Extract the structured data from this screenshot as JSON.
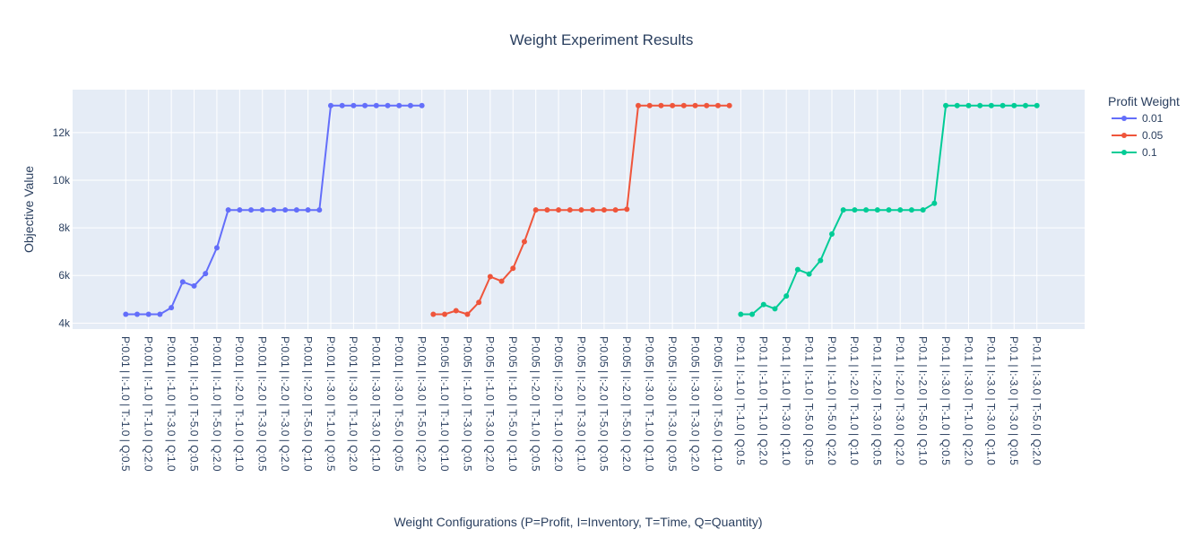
{
  "chart_data": {
    "type": "line",
    "title": "Weight Experiment Results",
    "xlabel": "Weight Configurations (P=Profit, I=Inventory, T=Time, Q=Quantity)",
    "ylabel": "Objective Value",
    "legend_title": "Profit Weight",
    "legend_position": "top-right",
    "grid": true,
    "ylim": [
      3750,
      13800
    ],
    "yticks": [
      4000,
      6000,
      8000,
      10000,
      12000
    ],
    "ytick_labels": [
      "4k",
      "6k",
      "8k",
      "10k",
      "12k"
    ],
    "plot_bg": "#e5ecf6",
    "categories": [
      "P:0.01 | I:-1.0 | T:-1.0 | Q:0.5",
      "P:0.01 | I:-1.0 | T:-1.0 | Q:2.0",
      "P:0.01 | I:-1.0 | T:-3.0 | Q:1.0",
      "P:0.01 | I:-1.0 | T:-5.0 | Q:0.5",
      "P:0.01 | I:-1.0 | T:-5.0 | Q:2.0",
      "P:0.01 | I:-2.0 | T:-1.0 | Q:1.0",
      "P:0.01 | I:-2.0 | T:-3.0 | Q:0.5",
      "P:0.01 | I:-2.0 | T:-3.0 | Q:2.0",
      "P:0.01 | I:-2.0 | T:-5.0 | Q:1.0",
      "P:0.01 | I:-3.0 | T:-1.0 | Q:0.5",
      "P:0.01 | I:-3.0 | T:-1.0 | Q:2.0",
      "P:0.01 | I:-3.0 | T:-3.0 | Q:1.0",
      "P:0.01 | I:-3.0 | T:-5.0 | Q:0.5",
      "P:0.01 | I:-3.0 | T:-5.0 | Q:2.0",
      "P:0.05 | I:-1.0 | T:-1.0 | Q:1.0",
      "P:0.05 | I:-1.0 | T:-3.0 | Q:0.5",
      "P:0.05 | I:-1.0 | T:-3.0 | Q:2.0",
      "P:0.05 | I:-1.0 | T:-5.0 | Q:1.0",
      "P:0.05 | I:-2.0 | T:-1.0 | Q:0.5",
      "P:0.05 | I:-2.0 | T:-1.0 | Q:2.0",
      "P:0.05 | I:-2.0 | T:-3.0 | Q:1.0",
      "P:0.05 | I:-2.0 | T:-5.0 | Q:0.5",
      "P:0.05 | I:-2.0 | T:-5.0 | Q:2.0",
      "P:0.05 | I:-3.0 | T:-1.0 | Q:1.0",
      "P:0.05 | I:-3.0 | T:-3.0 | Q:0.5",
      "P:0.05 | I:-3.0 | T:-3.0 | Q:2.0",
      "P:0.05 | I:-3.0 | T:-5.0 | Q:1.0",
      "P:0.1 | I:-1.0 | T:-1.0 | Q:0.5",
      "P:0.1 | I:-1.0 | T:-1.0 | Q:2.0",
      "P:0.1 | I:-1.0 | T:-3.0 | Q:1.0",
      "P:0.1 | I:-1.0 | T:-5.0 | Q:0.5",
      "P:0.1 | I:-1.0 | T:-5.0 | Q:2.0",
      "P:0.1 | I:-2.0 | T:-1.0 | Q:1.0",
      "P:0.1 | I:-2.0 | T:-3.0 | Q:0.5",
      "P:0.1 | I:-2.0 | T:-3.0 | Q:2.0",
      "P:0.1 | I:-2.0 | T:-5.0 | Q:1.0",
      "P:0.1 | I:-3.0 | T:-1.0 | Q:0.5",
      "P:0.1 | I:-3.0 | T:-1.0 | Q:2.0",
      "P:0.1 | I:-3.0 | T:-3.0 | Q:1.0",
      "P:0.1 | I:-3.0 | T:-3.0 | Q:0.5",
      "P:0.1 | I:-3.0 | T:-5.0 | Q:2.0"
    ],
    "n_slots": 81,
    "series": [
      {
        "name": "0.01",
        "color": "#636efa",
        "x": [
          0,
          1,
          2,
          3,
          4,
          5,
          6,
          7,
          8,
          9,
          10,
          11,
          12,
          13,
          14,
          15,
          16,
          17,
          18,
          19,
          20,
          21,
          22,
          23,
          24,
          25,
          26
        ],
        "values": [
          4370,
          4370,
          4370,
          4370,
          4650,
          5730,
          5560,
          6080,
          7160,
          8750,
          8750,
          8750,
          8750,
          8750,
          8750,
          8750,
          8750,
          8750,
          13130,
          13130,
          13130,
          13130,
          13130,
          13130,
          13130,
          13130,
          13130
        ]
      },
      {
        "name": "0.05",
        "color": "#ef553b",
        "x": [
          27,
          28,
          29,
          30,
          31,
          32,
          33,
          34,
          35,
          36,
          37,
          38,
          39,
          40,
          41,
          42,
          43,
          44,
          45,
          46,
          47,
          48,
          49,
          50,
          51,
          52,
          53
        ],
        "values": [
          4370,
          4370,
          4520,
          4370,
          4870,
          5950,
          5760,
          6300,
          7420,
          8750,
          8750,
          8750,
          8750,
          8750,
          8750,
          8750,
          8750,
          8780,
          13130,
          13130,
          13130,
          13130,
          13130,
          13130,
          13130,
          13130,
          13130
        ]
      },
      {
        "name": "0.1",
        "color": "#00cc96",
        "x": [
          54,
          55,
          56,
          57,
          58,
          59,
          60,
          61,
          62,
          63,
          64,
          65,
          66,
          67,
          68,
          69,
          70,
          71,
          72,
          73,
          74,
          75,
          76,
          77,
          78,
          79,
          80
        ],
        "values": [
          4370,
          4370,
          4780,
          4600,
          5140,
          6250,
          6060,
          6630,
          7740,
          8750,
          8750,
          8750,
          8750,
          8750,
          8750,
          8750,
          8750,
          9030,
          13130,
          13130,
          13130,
          13130,
          13130,
          13130,
          13130,
          13130,
          13130
        ]
      }
    ],
    "label_slots": [
      0,
      2,
      4,
      6,
      8,
      10,
      12,
      14,
      16,
      18,
      20,
      22,
      24,
      26,
      28,
      30,
      32,
      34,
      36,
      38,
      40,
      42,
      44,
      46,
      48,
      50,
      52,
      54,
      56,
      58,
      60,
      62,
      64,
      66,
      68,
      70,
      72,
      74,
      76,
      78,
      80
    ]
  }
}
